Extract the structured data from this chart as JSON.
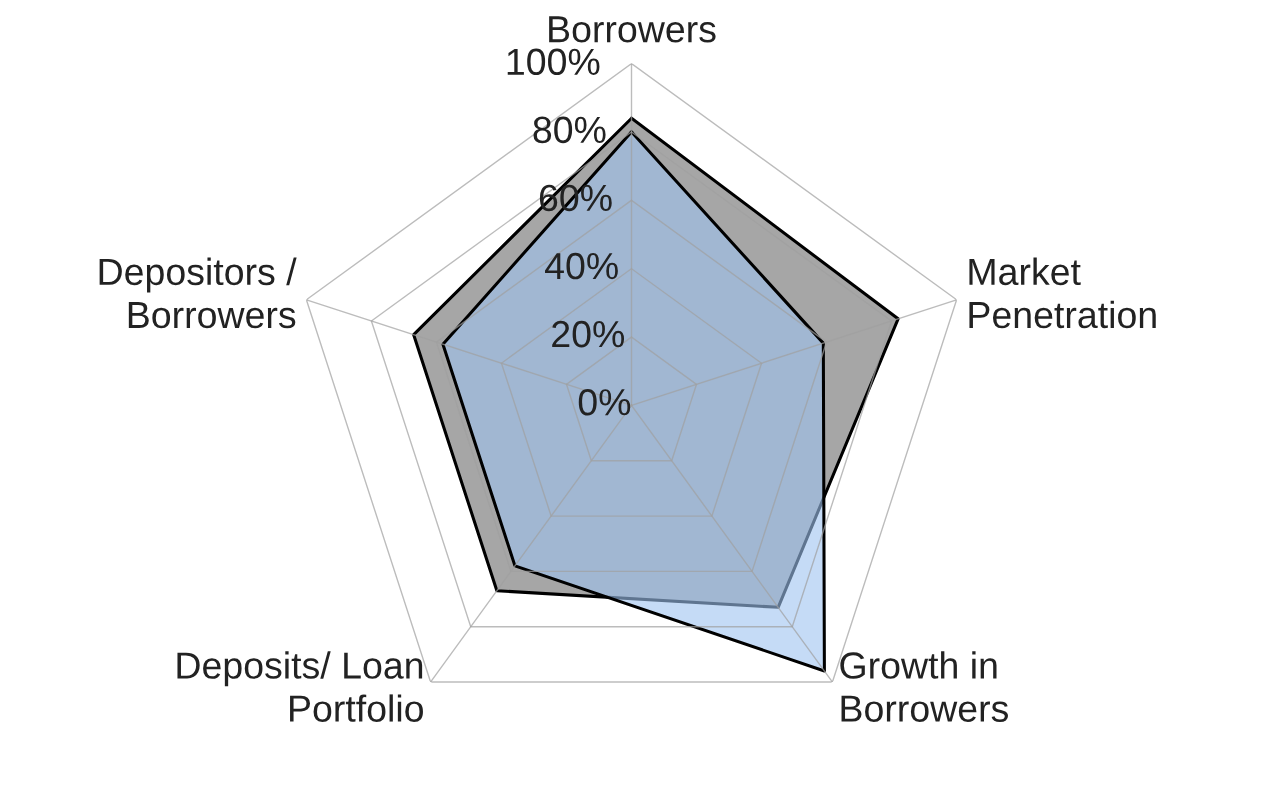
{
  "chart_data": {
    "type": "radar",
    "categories": [
      "Borrowers",
      "Market\nPenetration",
      "Growth in\nBorrowers",
      "Deposits/ Loan\nPortfolio",
      "Depositors /\nBorrowers"
    ],
    "series": [
      {
        "color": "#a6a6a6",
        "values": [
          84,
          82,
          73,
          67,
          67
        ]
      },
      {
        "color": "#9ec3f0",
        "values": [
          80,
          59,
          96,
          58,
          58
        ]
      }
    ],
    "ylim": [
      0,
      100
    ],
    "yticks": [
      {
        "value": 0,
        "label": "0%"
      },
      {
        "value": 20,
        "label": "20%"
      },
      {
        "value": 40,
        "label": "40%"
      },
      {
        "value": 60,
        "label": "60%"
      },
      {
        "value": 80,
        "label": "80%"
      },
      {
        "value": 100,
        "label": "100%"
      }
    ],
    "grid": true
  }
}
